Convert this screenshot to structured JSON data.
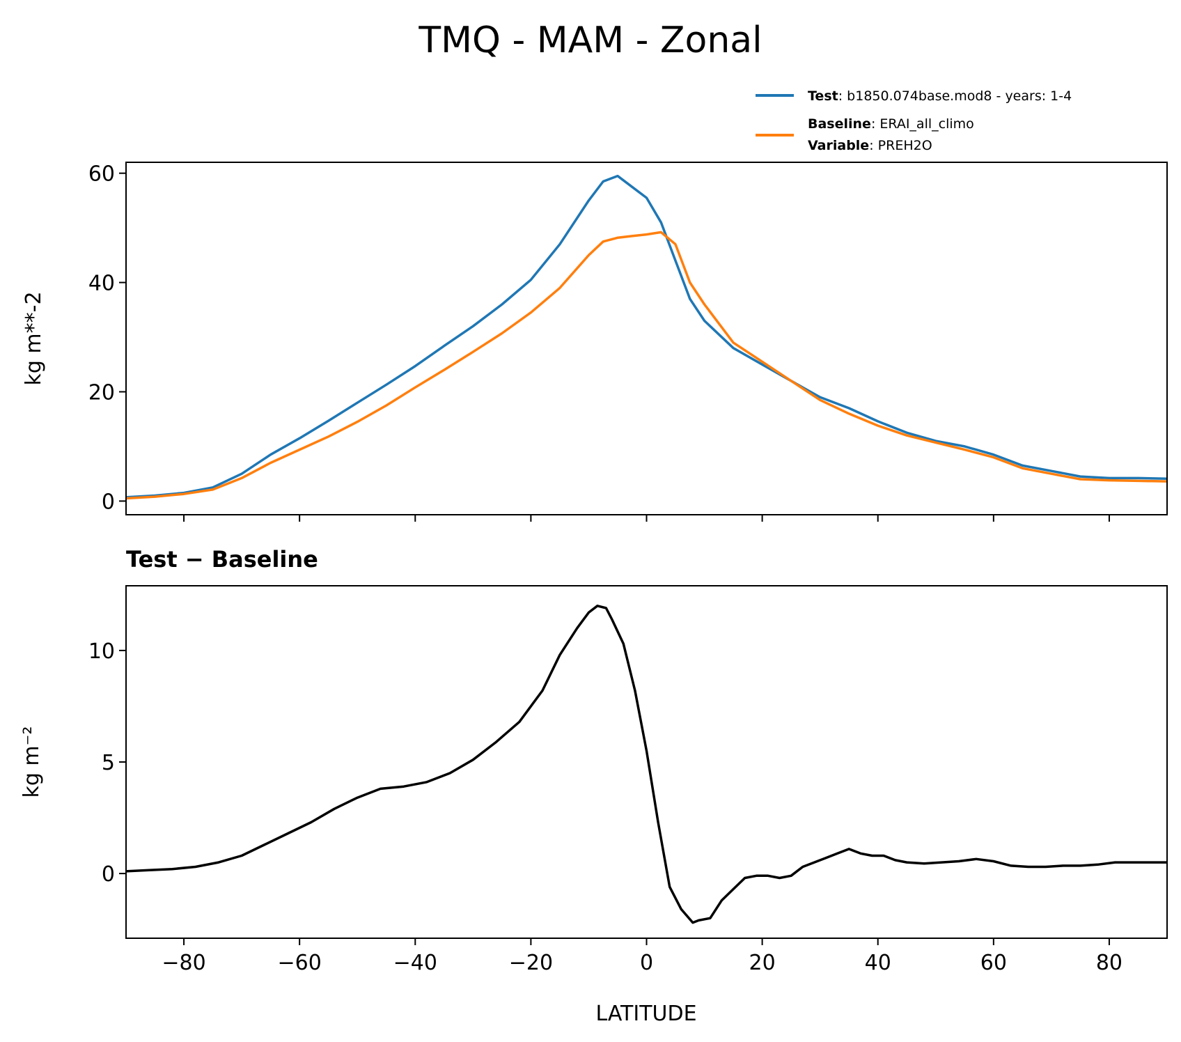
{
  "title": "TMQ - MAM - Zonal",
  "legend": {
    "test_key": "Test",
    "test_value": "b1850.074base.mod8 - years: 1-4",
    "baseline_key": "Baseline",
    "baseline_value": "ERAI_all_climo",
    "variable_key": "Variable",
    "variable_value": "PREH2O"
  },
  "colors": {
    "test": "#1f77b4",
    "baseline": "#ff7f0e",
    "diff": "#000000"
  },
  "chart_data": [
    {
      "type": "line",
      "panel": "top",
      "ylabel": "kg m**-2",
      "xlabel": "",
      "xlim": [
        -90,
        90
      ],
      "ylim": [
        -2.5,
        62
      ],
      "yticks": [
        0,
        20,
        40,
        60
      ],
      "ytick_labels": [
        "0",
        "20",
        "40",
        "60"
      ],
      "xticks": [
        -80,
        -60,
        -40,
        -20,
        0,
        20,
        40,
        60,
        80
      ],
      "x": [
        -90,
        -85,
        -80,
        -75,
        -70,
        -65,
        -60,
        -55,
        -50,
        -45,
        -40,
        -35,
        -30,
        -25,
        -20,
        -15,
        -10,
        -7.5,
        -5,
        -2.5,
        0,
        2.5,
        5,
        7.5,
        10,
        15,
        20,
        25,
        30,
        35,
        40,
        45,
        50,
        55,
        60,
        65,
        70,
        75,
        80,
        85,
        90
      ],
      "series": [
        {
          "name": "Test",
          "values": [
            0.7,
            1.0,
            1.5,
            2.5,
            5.0,
            8.5,
            11.5,
            14.7,
            18.0,
            21.3,
            24.7,
            28.4,
            32.0,
            36.0,
            40.5,
            47.0,
            55.0,
            58.5,
            59.5,
            57.5,
            55.5,
            51.0,
            44.0,
            37.0,
            33.0,
            28.0,
            25.0,
            22.0,
            19.0,
            17.0,
            14.6,
            12.5,
            11.0,
            10.0,
            8.5,
            6.5,
            5.5,
            4.5,
            4.2,
            4.2,
            4.1
          ]
        },
        {
          "name": "Baseline",
          "values": [
            0.5,
            0.8,
            1.3,
            2.1,
            4.2,
            7.0,
            9.4,
            11.8,
            14.5,
            17.5,
            20.8,
            24.0,
            27.3,
            30.7,
            34.5,
            39.0,
            45.0,
            47.5,
            48.2,
            48.5,
            48.8,
            49.2,
            47.0,
            40.0,
            36.0,
            29.0,
            25.5,
            22.0,
            18.5,
            16.0,
            13.8,
            12.0,
            10.7,
            9.4,
            8.0,
            6.0,
            5.0,
            4.0,
            3.8,
            3.7,
            3.6
          ]
        }
      ]
    },
    {
      "type": "line",
      "panel": "bottom",
      "title": "Test − Baseline",
      "ylabel": "kg m⁻²",
      "xlabel": "LATITUDE",
      "xlim": [
        -90,
        90
      ],
      "ylim": [
        -2.9,
        12.9
      ],
      "yticks": [
        0,
        5,
        10
      ],
      "ytick_labels": [
        "0",
        "5",
        "10"
      ],
      "xticks": [
        -80,
        -60,
        -40,
        -20,
        0,
        20,
        40,
        60,
        80
      ],
      "xtick_labels": [
        "−80",
        "−60",
        "−40",
        "−20",
        "0",
        "20",
        "40",
        "60",
        "80"
      ],
      "x": [
        -90,
        -86,
        -82,
        -78,
        -74,
        -70,
        -66,
        -62,
        -58,
        -54,
        -50,
        -46,
        -42,
        -38,
        -34,
        -30,
        -26,
        -22,
        -18,
        -15,
        -12,
        -10,
        -8.5,
        -7,
        -6,
        -4,
        -2,
        0,
        2,
        4,
        6,
        8,
        9,
        11,
        13,
        15,
        17,
        19,
        21,
        23,
        25,
        27,
        29,
        31,
        33,
        35,
        37,
        39,
        41,
        43,
        45,
        48,
        51,
        54,
        57,
        60,
        63,
        66,
        69,
        72,
        75,
        78,
        81,
        84,
        87,
        90
      ],
      "series": [
        {
          "name": "Test − Baseline",
          "values": [
            0.1,
            0.15,
            0.2,
            0.3,
            0.5,
            0.8,
            1.3,
            1.8,
            2.3,
            2.9,
            3.4,
            3.8,
            3.9,
            4.1,
            4.5,
            5.1,
            5.9,
            6.8,
            8.2,
            9.8,
            11.0,
            11.7,
            12.0,
            11.9,
            11.4,
            10.3,
            8.2,
            5.5,
            2.3,
            -0.6,
            -1.6,
            -2.2,
            -2.1,
            -2.0,
            -1.2,
            -0.7,
            -0.2,
            -0.1,
            -0.1,
            -0.2,
            -0.1,
            0.3,
            0.5,
            0.7,
            0.9,
            1.1,
            0.9,
            0.8,
            0.8,
            0.6,
            0.5,
            0.45,
            0.5,
            0.55,
            0.65,
            0.55,
            0.35,
            0.3,
            0.3,
            0.35,
            0.35,
            0.4,
            0.5,
            0.5,
            0.5,
            0.5
          ]
        }
      ]
    }
  ]
}
